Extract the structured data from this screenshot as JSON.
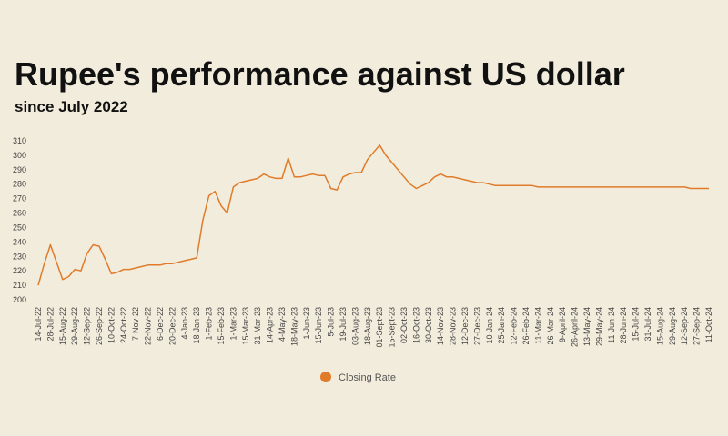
{
  "chart_data": {
    "type": "line",
    "title": "Rupee's performance against US dollar",
    "subtitle": "since July 2022",
    "categories": [
      "14-Jul-22",
      null,
      "28-Jul-22",
      null,
      "15-Aug-22",
      null,
      "29-Aug-22",
      null,
      "12-Sep-22",
      null,
      "26-Sep-22",
      null,
      "10-Oct-22",
      null,
      "24-Oct-22",
      null,
      "7-Nov-22",
      null,
      "22-Nov-22",
      null,
      "6-Dec-22",
      null,
      "20-Dec-22",
      null,
      "4-Jan-23",
      null,
      "18-Jan-23",
      null,
      "1-Feb-23",
      null,
      "15-Feb-23",
      null,
      "1-Mar-23",
      null,
      "15-Mar-23",
      null,
      "31-Mar-23",
      null,
      "14-Apr-23",
      null,
      "4-May-23",
      null,
      "18-May-23",
      null,
      "1-Jun-23",
      null,
      "15-Jun-23",
      null,
      "5-Jul-23",
      null,
      "19-Jul-23",
      null,
      "03-Aug-23",
      null,
      "18-Aug-23",
      null,
      "01-Sept-23",
      null,
      "15-Sept-23",
      null,
      "02-Oct-23",
      null,
      "16-Oct-23",
      null,
      "30-Oct-23",
      null,
      "14-Nov-23",
      null,
      "28-Nov-23",
      null,
      "12-Dec-23",
      null,
      "27-Dec-23",
      null,
      "10-Jan-24",
      null,
      "25-Jan-24",
      null,
      "12-Feb-24",
      null,
      "26-Feb-24",
      null,
      "11-Mar-24",
      null,
      "26-Mar-24",
      null,
      "9-April-24",
      null,
      "26-April-24",
      null,
      "13-May-24",
      null,
      "29-May-24",
      null,
      "11-Jun-24",
      null,
      "28-Jun-24",
      null,
      "15-Jul-24",
      null,
      "31-Jul-24",
      null,
      "15-Aug-24",
      null,
      "29-Aug-24",
      null,
      "12-Sep-24",
      null,
      "27-Sep-24",
      null,
      "11-Oct-24"
    ],
    "series": [
      {
        "name": "Closing Rate",
        "color": "#e07b2a",
        "values": [
          210,
          225,
          238,
          226,
          214,
          216,
          221,
          220,
          232,
          238,
          237,
          228,
          218,
          219,
          221,
          221,
          222,
          223,
          224,
          224,
          224,
          225,
          225,
          226,
          227,
          228,
          229,
          255,
          272,
          275,
          265,
          260,
          278,
          281,
          282,
          283,
          284,
          287,
          285,
          284,
          284,
          298,
          285,
          285,
          286,
          287,
          286,
          286,
          277,
          276,
          285,
          287,
          288,
          288,
          297,
          302,
          307,
          300,
          295,
          290,
          285,
          280,
          277,
          279,
          281,
          285,
          287,
          285,
          285,
          284,
          283,
          282,
          281,
          281,
          280,
          279,
          279,
          279,
          279,
          279,
          279,
          279,
          278,
          278,
          278,
          278,
          278,
          278,
          278,
          278,
          278,
          278,
          278,
          278,
          278,
          278,
          278,
          278,
          278,
          278,
          278,
          278,
          278,
          278,
          278,
          278,
          278,
          277,
          277,
          277,
          277
        ]
      }
    ],
    "ylim": [
      200,
      310
    ],
    "yticks": [
      200,
      210,
      220,
      230,
      240,
      250,
      260,
      270,
      280,
      290,
      300,
      310
    ],
    "legend": "bottom"
  }
}
